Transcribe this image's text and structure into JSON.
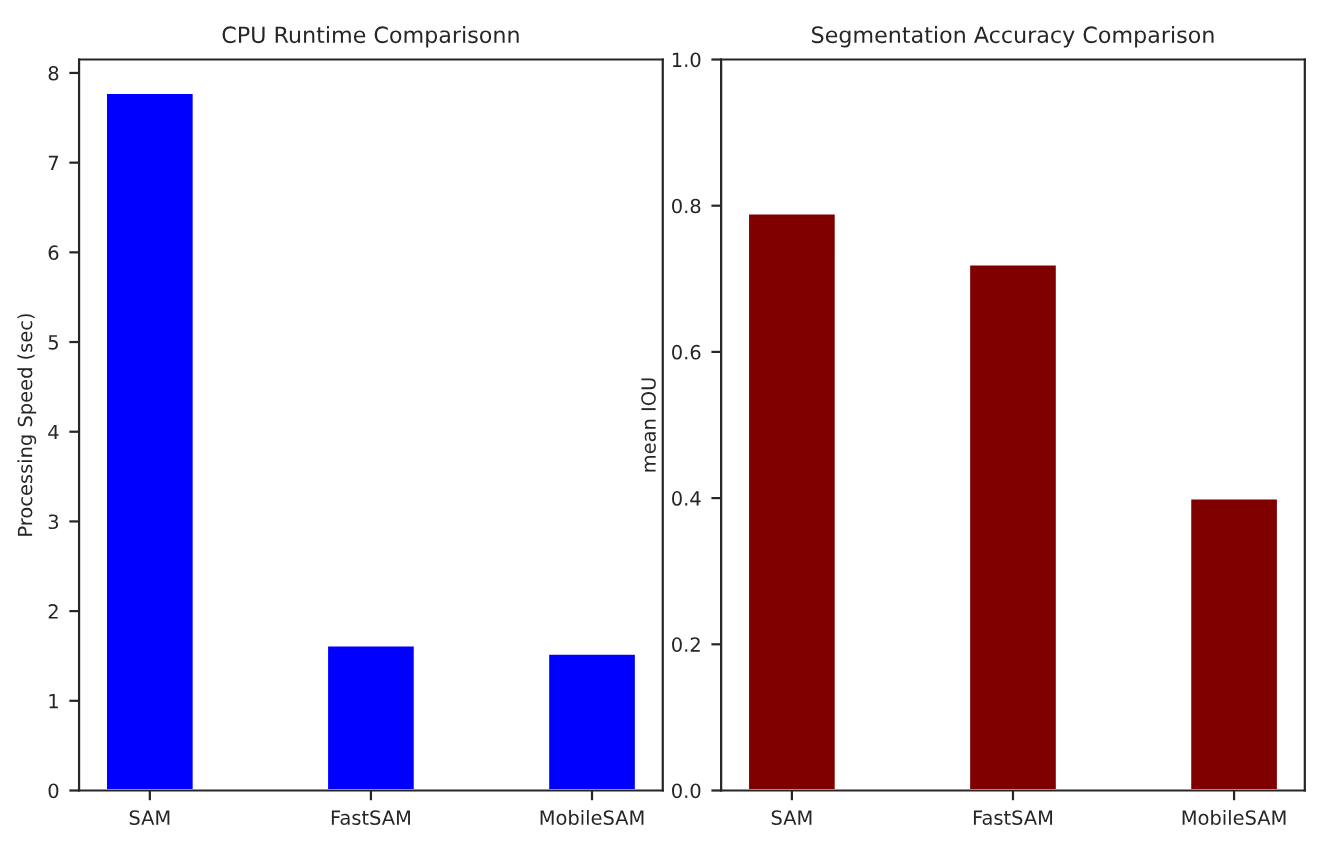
{
  "chart_data": [
    {
      "type": "bar",
      "title": "CPU Runtime Comparisonn",
      "ylabel": "Processing Speed (sec)",
      "categories": [
        "SAM",
        "FastSAM",
        "MobileSAM"
      ],
      "values": [
        7.78,
        1.62,
        1.53
      ],
      "color": "#0000ff",
      "ylim": [
        0,
        8.15
      ],
      "yticks": [
        0,
        1,
        2,
        3,
        4,
        5,
        6,
        7,
        8
      ],
      "grid": false,
      "legend": false
    },
    {
      "type": "bar",
      "title": "Segmentation Accuracy Comparison",
      "ylabel": "mean IOU",
      "categories": [
        "SAM",
        "FastSAM",
        "MobileSAM"
      ],
      "values": [
        0.79,
        0.72,
        0.4
      ],
      "color": "#800000",
      "ylim": [
        0,
        1.0
      ],
      "yticks": [
        {
          "value": 0,
          "label": "0.0"
        },
        0.2,
        0.4,
        0.6,
        0.8,
        {
          "value": 1,
          "label": "1.0"
        }
      ],
      "grid": false,
      "legend": false
    }
  ]
}
